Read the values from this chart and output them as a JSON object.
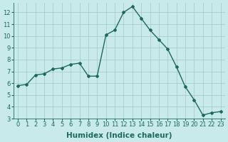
{
  "x": [
    0,
    1,
    2,
    3,
    4,
    5,
    6,
    7,
    8,
    9,
    10,
    11,
    12,
    13,
    14,
    15,
    16,
    17,
    18,
    19,
    20,
    21,
    22,
    23
  ],
  "y": [
    5.8,
    5.9,
    6.7,
    6.8,
    7.2,
    7.3,
    7.6,
    7.7,
    6.6,
    6.6,
    10.1,
    10.5,
    12.0,
    12.5,
    11.5,
    10.5,
    9.7,
    8.9,
    7.4,
    5.7,
    4.6,
    3.3,
    3.5,
    3.6
  ],
  "line_color": "#1a6b5a",
  "marker": "D",
  "marker_size": 2.0,
  "bg_color": "#c8eaea",
  "grid_color": "#a8cccc",
  "xlabel": "Humidex (Indice chaleur)",
  "xlim": [
    -0.5,
    23.5
  ],
  "ylim": [
    3,
    12.8
  ],
  "xticks": [
    0,
    1,
    2,
    3,
    4,
    5,
    6,
    7,
    8,
    9,
    10,
    11,
    12,
    13,
    14,
    15,
    16,
    17,
    18,
    19,
    20,
    21,
    22,
    23
  ],
  "yticks": [
    3,
    4,
    5,
    6,
    7,
    8,
    9,
    10,
    11,
    12
  ],
  "tick_fontsize": 6.0,
  "xlabel_fontsize": 7.5
}
